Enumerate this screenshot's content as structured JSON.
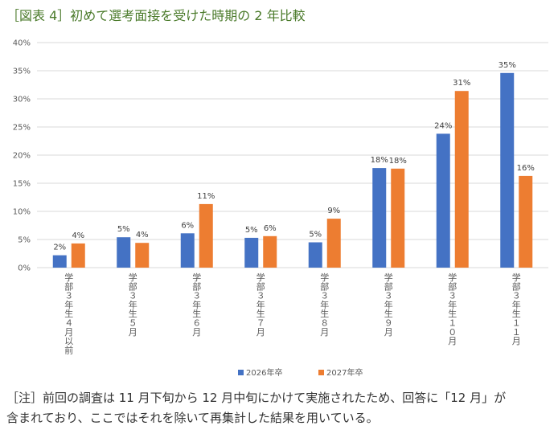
{
  "title": "［図表 4］初めて選考面接を受けた時期の 2 年比較",
  "note": {
    "line1": "［注］前回の調査は 11 月下旬から 12 月中旬にかけて実施されたため、回答に「12 月」が",
    "line2": "含まれており、ここではそれを除いて再集計した結果を用いている。"
  },
  "colors": {
    "series1": "#4472c4",
    "series2": "#ed7d31",
    "grid": "#d9d9d9",
    "title": "#4a7a2a"
  },
  "chart_data": {
    "type": "bar",
    "title": "",
    "xlabel": "",
    "ylabel": "",
    "ylim": [
      0,
      40
    ],
    "yticks": [
      "0%",
      "5%",
      "10%",
      "15%",
      "20%",
      "25%",
      "30%",
      "35%",
      "40%"
    ],
    "grid": true,
    "legend_position": "bottom",
    "categories": [
      "学部3年生4月以前",
      "学部3年生5月",
      "学部3年生6月",
      "学部3年生7月",
      "学部3年生8月",
      "学部3年生9月",
      "学部3年生10月",
      "学部3年生11月"
    ],
    "category_labels": [
      "学部３年生４月以前",
      "学部３年生５月",
      "学部３年生６月",
      "学部３年生７月",
      "学部３年生８月",
      "学部３年生９月",
      "学部３年生１０月",
      "学部３年生１１月"
    ],
    "series": [
      {
        "name": "2026年卒",
        "values": [
          2.2,
          5.4,
          6.1,
          5.3,
          4.5,
          17.7,
          23.8,
          34.6
        ],
        "labels": [
          "2%",
          "5%",
          "6%",
          "5%",
          "5%",
          "18%",
          "24%",
          "35%"
        ]
      },
      {
        "name": "2027年卒",
        "values": [
          4.3,
          4.4,
          11.3,
          5.6,
          8.7,
          17.6,
          31.4,
          16.3
        ],
        "labels": [
          "4%",
          "4%",
          "11%",
          "6%",
          "9%",
          "18%",
          "31%",
          "16%"
        ]
      }
    ]
  }
}
